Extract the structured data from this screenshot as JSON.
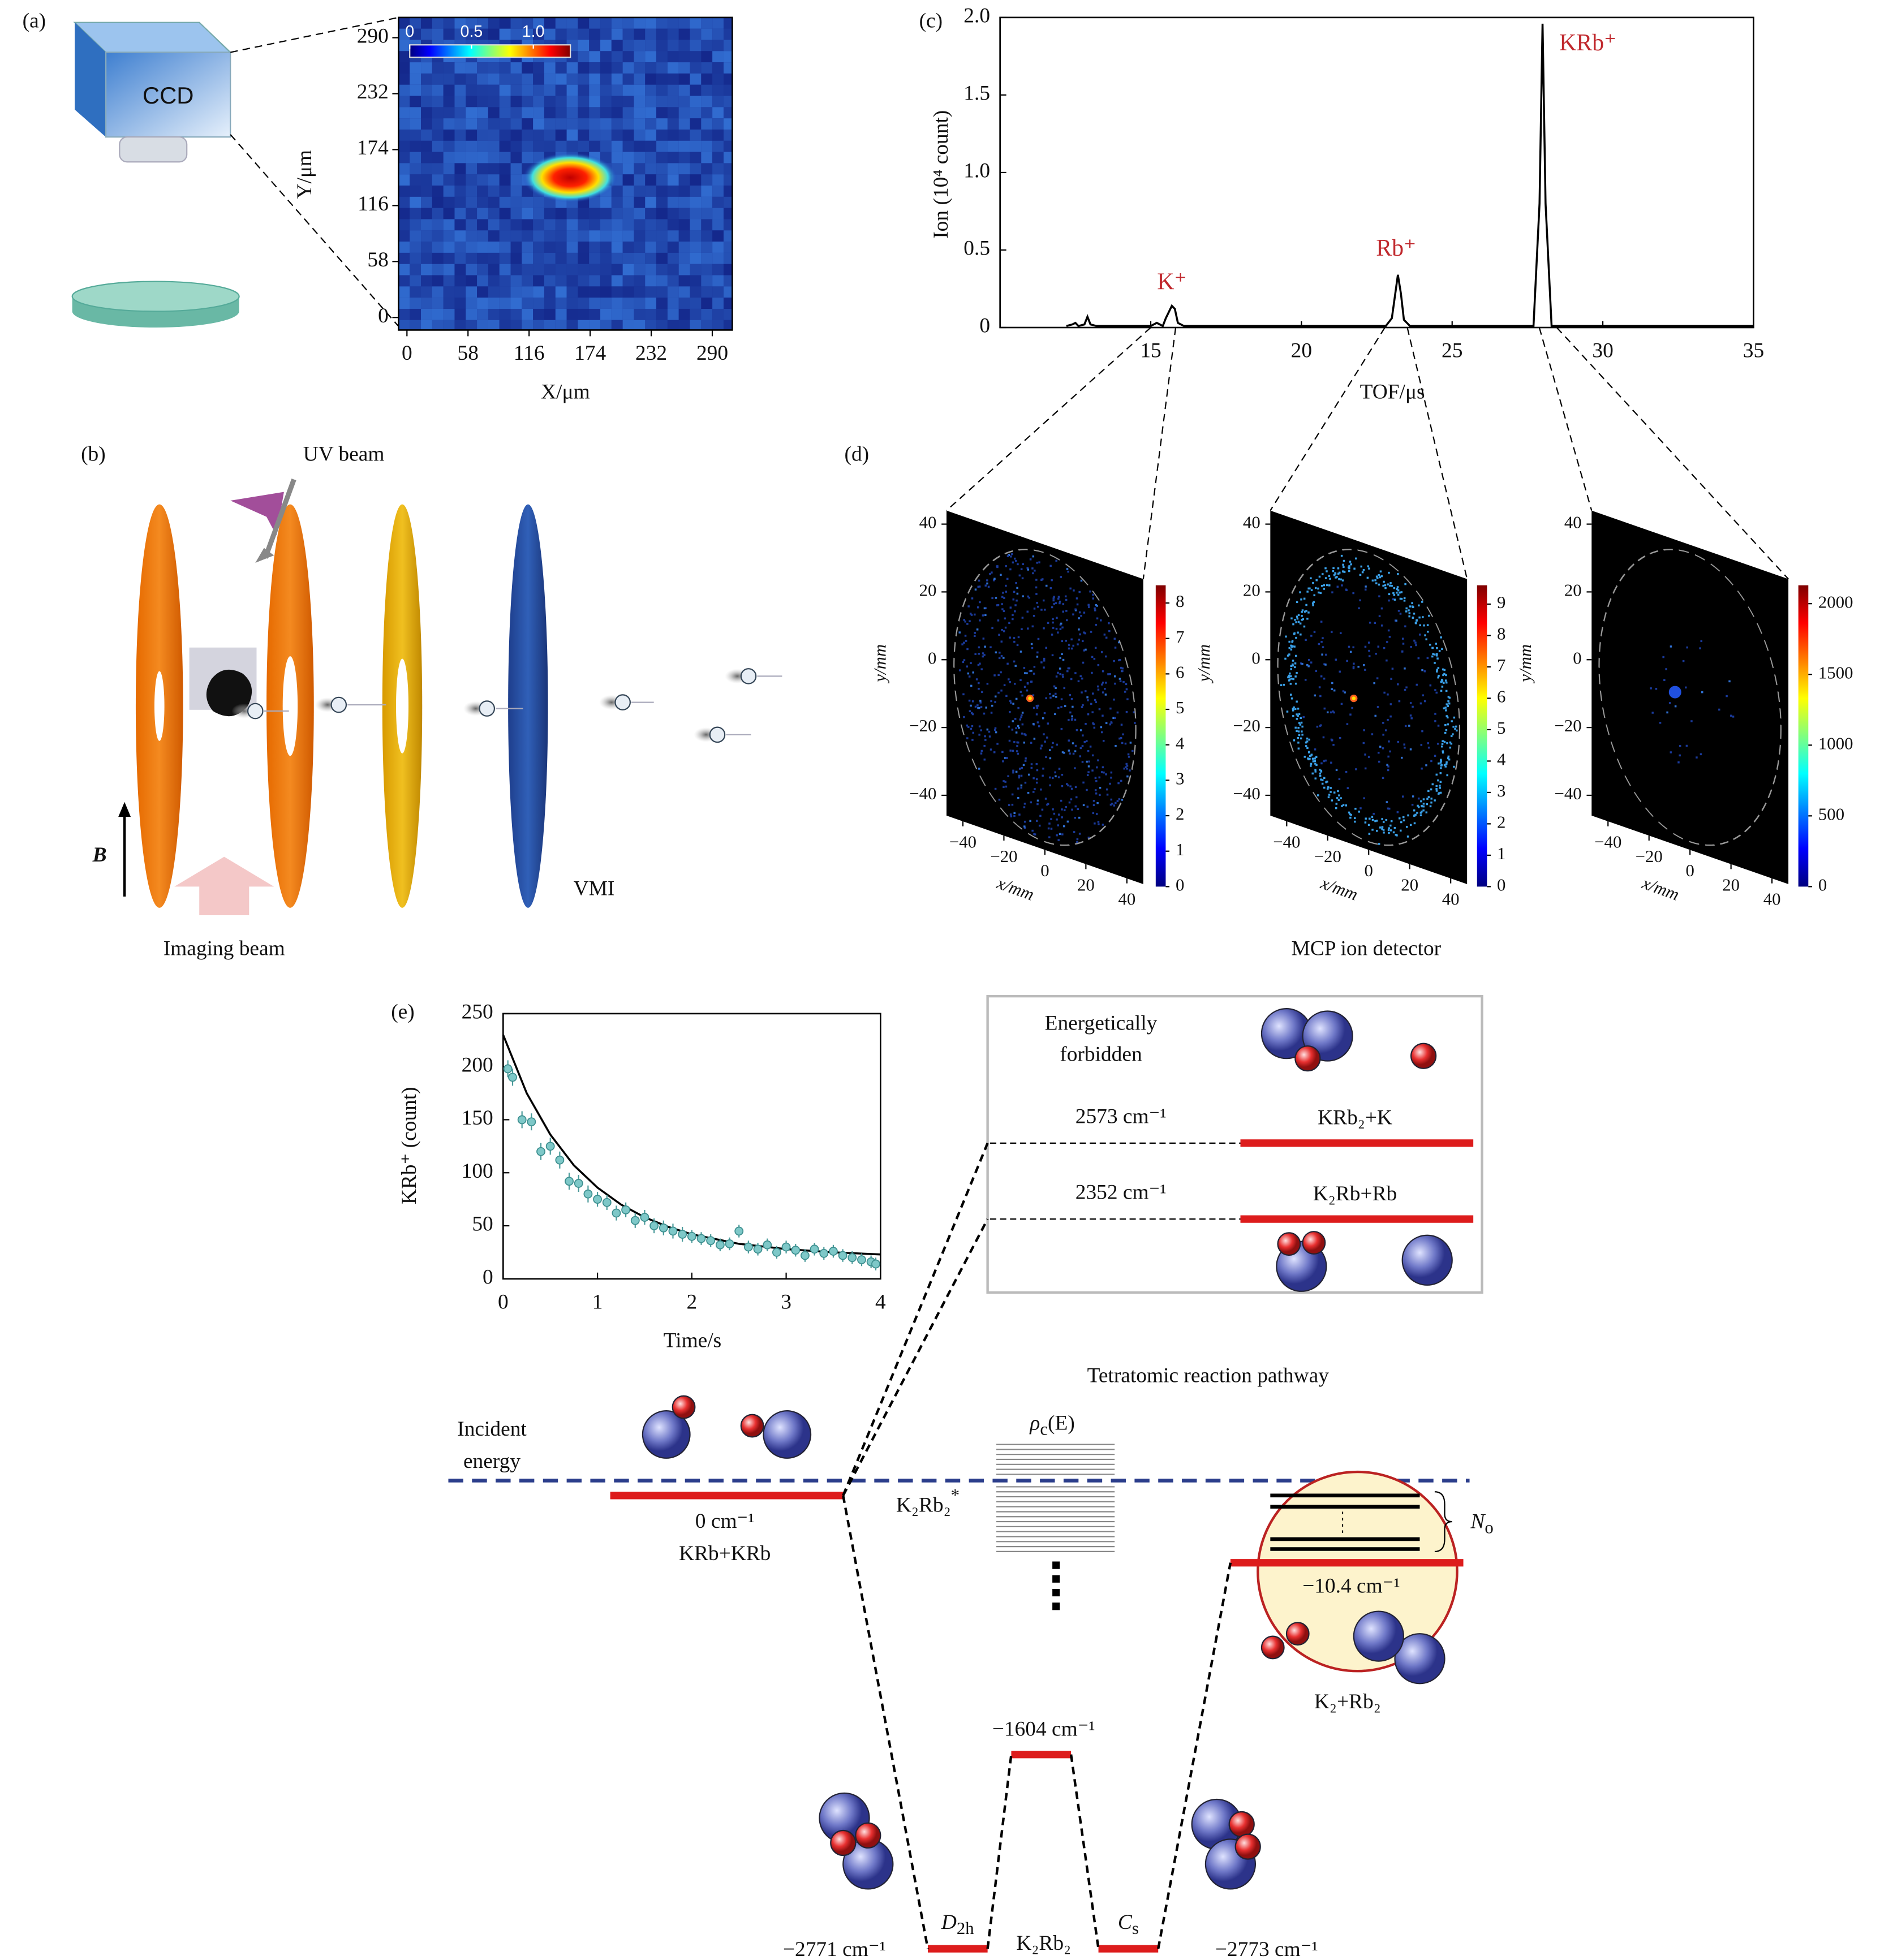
{
  "panel_labels": [
    "(a)",
    "(b)",
    "(c)",
    "(d)",
    "(e)"
  ],
  "a": {
    "camera_label": "CCD"
  },
  "b": {
    "uv_beam": "UV beam",
    "imaging_beam": "Imaging beam",
    "vmi": "VMI",
    "field": "B"
  },
  "d": {
    "caption": "MCP ion detector"
  },
  "e_diagram": {
    "forbidden": [
      "Energetically",
      "forbidden"
    ],
    "krb2_k_energy": "2573 cm⁻¹",
    "krb2_k": "KRb₂+K",
    "k2rb_rb_energy": "2352 cm⁻¹",
    "k2rb_rb": "K₂Rb+Rb",
    "pathway_title": "Tetratomic reaction pathway",
    "incident_energy": [
      "Incident",
      "energy"
    ],
    "rho": [
      "ρ",
      "c",
      "(E)"
    ],
    "entrance_energy": "0 cm⁻¹",
    "entrance": "KRb+KRb",
    "complex": [
      "K₂Rb₂",
      "*"
    ],
    "open_channels": [
      "N",
      "o"
    ],
    "exit_energy": "−10.4 cm⁻¹",
    "exit": "K₂+Rb₂",
    "barrier_energy": "−1604 cm⁻¹",
    "d2h": [
      "D",
      "2h"
    ],
    "cs": [
      "C",
      "s"
    ],
    "minimum": "K₂Rb₂",
    "d2h_energy": "−2771 cm⁻¹",
    "cs_energy": "−2773 cm⁻¹"
  },
  "chart_data": [
    {
      "type": "heatmap",
      "xlabel": "X/μm",
      "ylabel": "Y/μm",
      "xlim": [
        -8,
        309
      ],
      "ylim": [
        -13,
        311
      ],
      "xticks": [
        0,
        58,
        116,
        174,
        232,
        290
      ],
      "yticks": [
        0,
        58,
        116,
        174,
        232,
        290
      ],
      "colorbar": {
        "lim": [
          0,
          1.3
        ],
        "ticks": [
          0,
          0.5,
          {
            "value": 1,
            "label": "1.0"
          }
        ]
      }
    },
    {
      "type": "line",
      "xlabel": "TOF/μs",
      "ylabel": "Ion (10⁴ count)",
      "xlim": [
        10,
        35
      ],
      "ylim": [
        0,
        2
      ],
      "xticks": [
        15,
        20,
        25,
        30,
        35
      ],
      "yticks": [
        0,
        0.5,
        {
          "value": 1,
          "label": "1.0"
        },
        1.5,
        {
          "value": 2,
          "label": "2.0"
        }
      ],
      "color": "#000000",
      "x": [
        12.2,
        12.4,
        12.5,
        12.6,
        12.8,
        12.9,
        13.0,
        13.2,
        14,
        15,
        15.2,
        15.4,
        15.5,
        15.6,
        15.7,
        15.8,
        15.9,
        16.1,
        17,
        18,
        19,
        20,
        21,
        22,
        22.8,
        23.0,
        23.1,
        23.2,
        23.3,
        23.4,
        23.6,
        24,
        25,
        26,
        27,
        27.7,
        27.9,
        28.0,
        28.1,
        28.3,
        29,
        30,
        32,
        34,
        35
      ],
      "values": [
        0.01,
        0.02,
        0.03,
        0.01,
        0.02,
        0.07,
        0.02,
        0.01,
        0.01,
        0.01,
        0.03,
        0.01,
        0.06,
        0.1,
        0.14,
        0.12,
        0.03,
        0.01,
        0.01,
        0.01,
        0.01,
        0.01,
        0.01,
        0.01,
        0.01,
        0.06,
        0.2,
        0.34,
        0.22,
        0.05,
        0.01,
        0.01,
        0.01,
        0.01,
        0.01,
        0.01,
        0.8,
        1.96,
        0.8,
        0.01,
        0.01,
        0.01,
        0.01,
        0.01,
        0.01
      ],
      "annotations": [
        "K⁺",
        "Rb⁺",
        "KRb⁺"
      ],
      "annotation_color": "#c0282d"
    },
    {
      "type": "image",
      "xlabel": "x/mm",
      "ylabel": "y/mm",
      "xlim": [
        -48,
        48
      ],
      "ylim": [
        -46,
        44
      ],
      "xticks": [
        {
          "value": -40,
          "label": "−40"
        },
        {
          "value": -20,
          "label": "−20"
        },
        0,
        20,
        40
      ],
      "yticks": [
        40,
        20,
        0,
        {
          "value": -20,
          "label": "−20"
        },
        {
          "value": -40,
          "label": "−40"
        }
      ],
      "colorbar": {
        "lim": [
          0,
          8.5
        ],
        "ticks": [
          0,
          1,
          2,
          3,
          4,
          5,
          6,
          7,
          8
        ]
      }
    },
    {
      "type": "image",
      "xlabel": "x/mm",
      "ylabel": "y/mm",
      "xlim": [
        -48,
        48
      ],
      "ylim": [
        -46,
        44
      ],
      "xticks": [
        {
          "value": -40,
          "label": "−40"
        },
        {
          "value": -20,
          "label": "−20"
        },
        0,
        20,
        40
      ],
      "yticks": [
        40,
        20,
        0,
        {
          "value": -20,
          "label": "−20"
        },
        {
          "value": -40,
          "label": "−40"
        }
      ],
      "colorbar": {
        "lim": [
          0,
          9.6
        ],
        "ticks": [
          0,
          1,
          2,
          3,
          4,
          5,
          6,
          7,
          8,
          9
        ]
      }
    },
    {
      "type": "image",
      "xlabel": "x/mm",
      "ylabel": "y/mm",
      "xlim": [
        -48,
        48
      ],
      "ylim": [
        -46,
        44
      ],
      "xticks": [
        {
          "value": -40,
          "label": "−40"
        },
        {
          "value": -20,
          "label": "−20"
        },
        0,
        20,
        40
      ],
      "yticks": [
        40,
        20,
        0,
        {
          "value": -20,
          "label": "−20"
        },
        {
          "value": -40,
          "label": "−40"
        }
      ],
      "colorbar": {
        "lim": [
          0,
          2130
        ],
        "ticks": [
          0,
          500,
          1000,
          1500,
          2000
        ]
      }
    },
    {
      "type": "scatter",
      "xlabel": "Time/s",
      "ylabel": "KRb⁺ (count)",
      "xlim": [
        0,
        4
      ],
      "ylim": [
        0,
        250
      ],
      "xticks": [
        0,
        1,
        2,
        3,
        4
      ],
      "yticks": [
        0,
        50,
        100,
        150,
        200,
        250
      ],
      "color": "#7ec8c8",
      "x": [
        0.05,
        0.1,
        0.2,
        0.3,
        0.4,
        0.5,
        0.6,
        0.7,
        0.8,
        0.9,
        1.0,
        1.1,
        1.2,
        1.3,
        1.4,
        1.5,
        1.6,
        1.7,
        1.8,
        1.9,
        2.0,
        2.1,
        2.2,
        2.3,
        2.4,
        2.5,
        2.6,
        2.7,
        2.8,
        2.9,
        3.0,
        3.1,
        3.2,
        3.3,
        3.4,
        3.5,
        3.6,
        3.7,
        3.8,
        3.9,
        3.95
      ],
      "values": [
        198,
        190,
        150,
        148,
        120,
        125,
        112,
        92,
        90,
        80,
        75,
        72,
        62,
        65,
        55,
        58,
        50,
        48,
        45,
        42,
        40,
        38,
        36,
        32,
        33,
        45,
        30,
        28,
        32,
        25,
        30,
        27,
        22,
        28,
        24,
        26,
        22,
        20,
        18,
        16,
        14
      ],
      "errors": [
        8,
        8,
        8,
        8,
        8,
        8,
        8,
        8,
        8,
        8,
        7,
        7,
        7,
        7,
        7,
        7,
        7,
        7,
        7,
        7,
        6,
        6,
        6,
        6,
        6,
        6,
        6,
        6,
        6,
        6,
        6,
        6,
        6,
        6,
        6,
        6,
        6,
        6,
        6,
        6,
        6
      ],
      "fit": {
        "color": "#000000",
        "x": [
          0,
          0.25,
          0.5,
          0.75,
          1,
          1.25,
          1.5,
          1.75,
          2,
          2.5,
          3,
          3.5,
          4
        ],
        "values": [
          230,
          175,
          136,
          107,
          86,
          70,
          58,
          49,
          42,
          33,
          28,
          25,
          23
        ]
      }
    }
  ]
}
